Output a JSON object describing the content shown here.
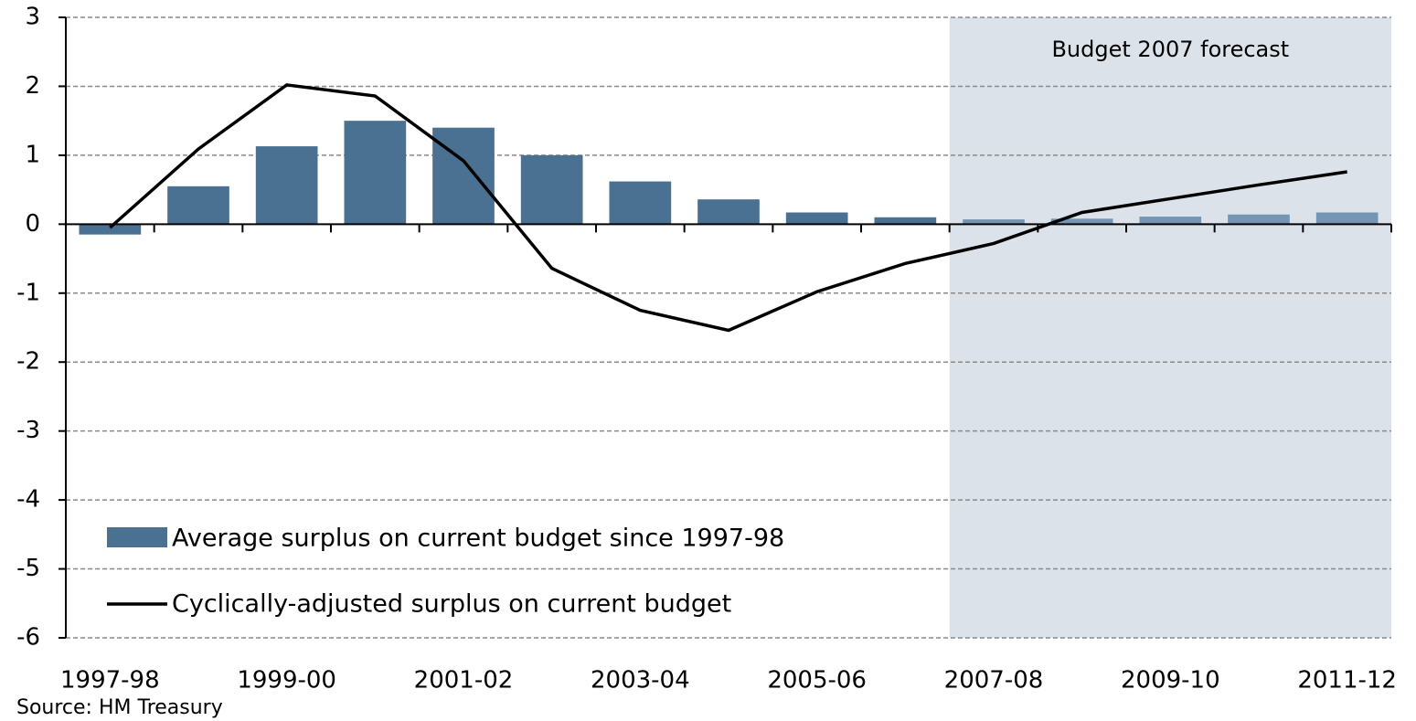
{
  "chart_data": {
    "type": "bar_line",
    "categories": [
      "1997-98",
      null,
      "1999-00",
      null,
      "2001-02",
      null,
      "2003-04",
      null,
      "2005-06",
      null,
      "2007-08",
      null,
      "2009-10",
      null,
      "2011-12"
    ],
    "series": [
      {
        "name": "Average surplus on current budget since 1997-98",
        "type": "bar",
        "color": "#4a7191",
        "forecast_color": "#7596b3",
        "values": [
          -0.15,
          0.55,
          1.13,
          1.5,
          1.4,
          1.0,
          0.62,
          0.36,
          0.17,
          0.1,
          0.07,
          0.08,
          0.11,
          0.14,
          0.17
        ]
      },
      {
        "name": "Cyclically-adjusted surplus on current budget",
        "type": "line",
        "color": "#000000",
        "values": [
          -0.05,
          1.09,
          2.02,
          1.86,
          0.92,
          -0.64,
          -1.25,
          -1.54,
          -0.98,
          -0.57,
          -0.28,
          0.17,
          0.37,
          0.57,
          0.76
        ]
      }
    ],
    "ylim": [
      -6,
      3
    ],
    "yticks": [
      -6,
      -5,
      -4,
      -3,
      -2,
      -1,
      0,
      1,
      2,
      3
    ],
    "grid": true,
    "forecast_region": {
      "label": "Budget 2007 forecast",
      "start": "2007-08",
      "color": "#dbe2ea"
    },
    "legend": "lower left",
    "source": "Source: HM Treasury"
  }
}
